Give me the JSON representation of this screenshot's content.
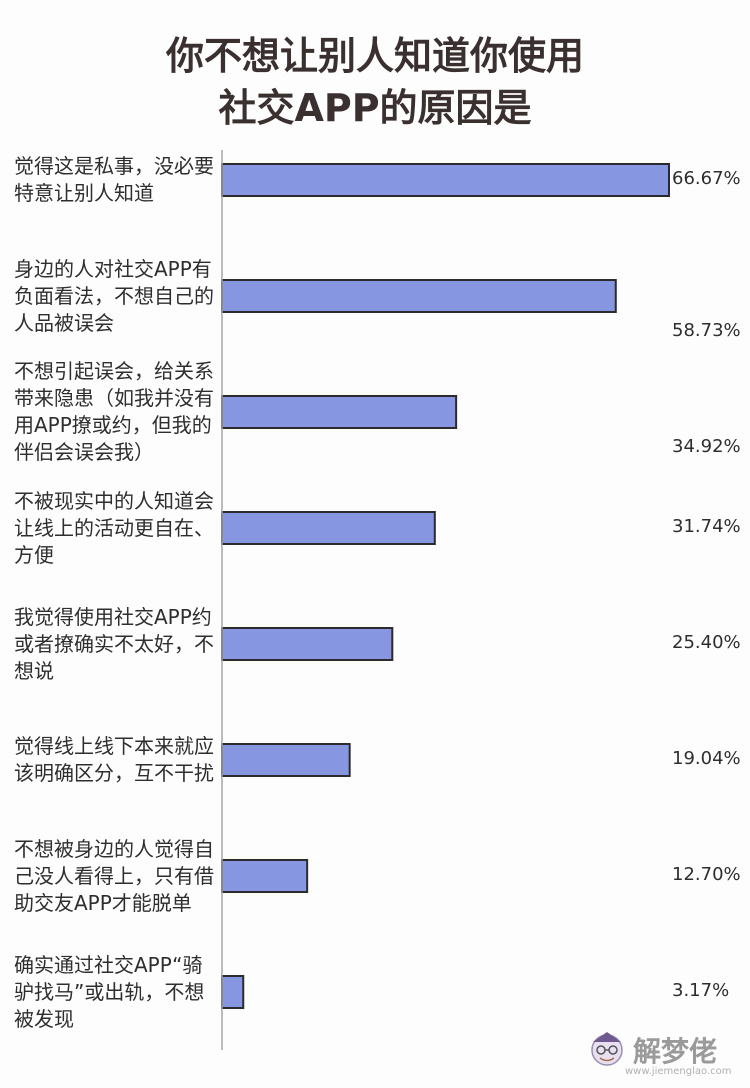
{
  "chart_data": {
    "type": "bar",
    "orientation": "horizontal",
    "title": [
      "你不想让别人知道你使用",
      "社交APP的原因是"
    ],
    "categories": [
      "觉得这是私事，没必要特意让别人知道",
      "身边的人对社交APP有负面看法，不想自己的人品被误会",
      "不想引起误会，给关系带来隐患（如我并没有用APP撩或约，但我的伴侣会误会我）",
      "不被现实中的人知道会让线上的活动更自在、方便",
      "我觉得使用社交APP约或者撩确实不太好，不想说",
      "觉得线上线下本来就应该明确区分，互不干扰",
      "不想被身边的人觉得自己没人看得上，只有借助交友APP才能脱单",
      "确实通过社交APP“骑驴找马”或出轨，不想被发现"
    ],
    "values": [
      66.67,
      58.73,
      34.92,
      31.74,
      25.4,
      19.04,
      12.7,
      3.17
    ],
    "value_labels": [
      "66.67%",
      "58.73%",
      "34.92%",
      "31.74%",
      "25.40%",
      "19.04%",
      "12.70%",
      "3.17%"
    ],
    "xlim": [
      0,
      66.67
    ],
    "bar_color": "#8796e0",
    "bar_stroke": "#2b2b2b",
    "axis_color": "#a8a8a8",
    "grid": false,
    "legend": "none"
  },
  "watermark": {
    "text": "解梦佬",
    "url": "www.jiemenglao.com"
  }
}
